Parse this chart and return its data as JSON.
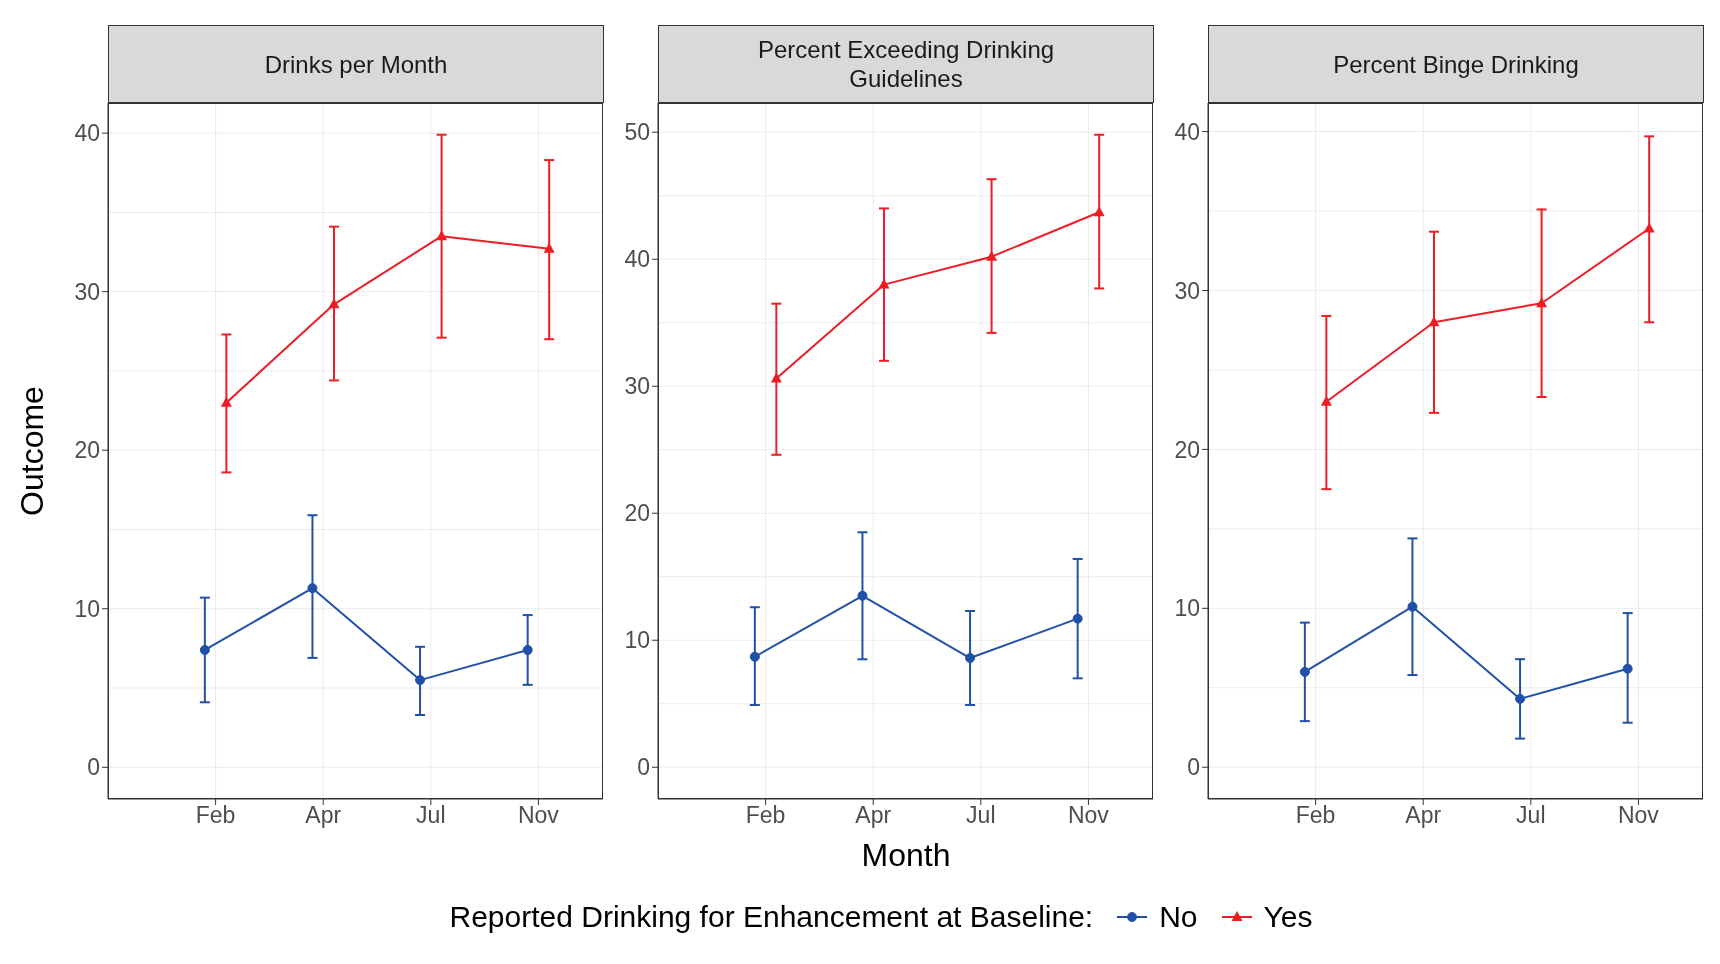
{
  "chart_data": [
    {
      "type": "line",
      "title": "Drinks per Month",
      "ylabel": "Outcome",
      "legend_title": "Reported Drinking for Enhancement at Baseline:",
      "legend": "bottom",
      "categories": [
        "Feb",
        "Apr",
        "Jul",
        "Nov"
      ],
      "ylim": [
        -2,
        41.9
      ],
      "yticks": [
        0,
        10,
        20,
        30,
        40
      ],
      "grid": true,
      "line_style": "solid",
      "series": [
        {
          "name": "No",
          "color": "#2150a8",
          "marker": "circle",
          "values": [
            7.4,
            11.3,
            5.5,
            7.4
          ],
          "errors": [
            [
              4.1,
              10.7
            ],
            [
              6.9,
              15.9
            ],
            [
              3.3,
              7.6
            ],
            [
              5.2,
              9.6
            ]
          ]
        },
        {
          "name": "Yes",
          "color": "#ee1c25",
          "marker": "triangle",
          "values": [
            23.0,
            29.2,
            33.5,
            32.7
          ],
          "errors": [
            [
              18.6,
              27.3
            ],
            [
              24.4,
              34.1
            ],
            [
              27.1,
              39.9
            ],
            [
              27.0,
              38.3
            ]
          ]
        }
      ]
    },
    {
      "type": "line",
      "title": "Percent Exceeding Drinking Guidelines",
      "xlabel": "Month",
      "categories": [
        "Feb",
        "Apr",
        "Jul",
        "Nov"
      ],
      "ylim": [
        -2.5,
        52.3
      ],
      "yticks": [
        0,
        10,
        20,
        30,
        40,
        50
      ],
      "grid": true,
      "line_style": "solid",
      "series": [
        {
          "color": "#2150a8",
          "marker": "circle",
          "values": [
            8.7,
            13.5,
            8.6,
            11.7
          ],
          "errors": [
            [
              4.9,
              12.6
            ],
            [
              8.5,
              18.5
            ],
            [
              4.9,
              12.3
            ],
            [
              7.0,
              16.4
            ]
          ]
        },
        {
          "color": "#ee1c25",
          "marker": "triangle",
          "values": [
            30.6,
            38.0,
            40.2,
            43.7
          ],
          "errors": [
            [
              24.6,
              36.5
            ],
            [
              32.0,
              44.0
            ],
            [
              34.2,
              46.3
            ],
            [
              37.7,
              49.8
            ]
          ]
        }
      ]
    },
    {
      "type": "line",
      "title": "Percent Binge Drinking",
      "categories": [
        "Feb",
        "Apr",
        "Jul",
        "Nov"
      ],
      "ylim": [
        -2,
        41.8
      ],
      "yticks": [
        0,
        10,
        20,
        30,
        40
      ],
      "grid": true,
      "line_style": "solid",
      "series": [
        {
          "color": "#2150a8",
          "marker": "circle",
          "values": [
            6.0,
            10.1,
            4.3,
            6.2
          ],
          "errors": [
            [
              2.9,
              9.1
            ],
            [
              5.8,
              14.4
            ],
            [
              1.8,
              6.8
            ],
            [
              2.8,
              9.7
            ]
          ]
        },
        {
          "color": "#ee1c25",
          "marker": "triangle",
          "values": [
            23.0,
            28.0,
            29.2,
            33.9
          ],
          "errors": [
            [
              17.5,
              28.4
            ],
            [
              22.3,
              33.7
            ],
            [
              23.3,
              35.1
            ],
            [
              28.0,
              39.7
            ]
          ]
        }
      ]
    }
  ]
}
